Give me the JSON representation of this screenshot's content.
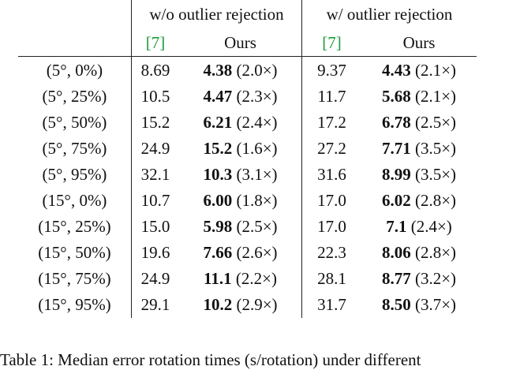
{
  "header": {
    "group1": "w/o outlier rejection",
    "group2": "w/ outlier rejection",
    "sub_ref1": "[7]",
    "sub_ours1": "Ours",
    "sub_ref2": "[7]",
    "sub_ours2": "Ours"
  },
  "rows": [
    {
      "cond": "(5°, 0%)",
      "a": "8.69",
      "b": "4.38",
      "br": "(2.0×)",
      "c": "9.37",
      "d": "4.43",
      "dr": "(2.1×)"
    },
    {
      "cond": "(5°, 25%)",
      "a": "10.5",
      "b": "4.47",
      "br": "(2.3×)",
      "c": "11.7",
      "d": "5.68",
      "dr": "(2.1×)"
    },
    {
      "cond": "(5°, 50%)",
      "a": "15.2",
      "b": "6.21",
      "br": "(2.4×)",
      "c": "17.2",
      "d": "6.78",
      "dr": "(2.5×)"
    },
    {
      "cond": "(5°, 75%)",
      "a": "24.9",
      "b": "15.2",
      "br": "(1.6×)",
      "c": "27.2",
      "d": "7.71",
      "dr": "(3.5×)"
    },
    {
      "cond": "(5°, 95%)",
      "a": "32.1",
      "b": "10.3",
      "br": "(3.1×)",
      "c": "31.6",
      "d": "8.99",
      "dr": "(3.5×)"
    },
    {
      "cond": "(15°, 0%)",
      "a": "10.7",
      "b": "6.00",
      "br": "(1.8×)",
      "c": "17.0",
      "d": "6.02",
      "dr": "(2.8×)"
    },
    {
      "cond": "(15°, 25%)",
      "a": "15.0",
      "b": "5.98",
      "br": "(2.5×)",
      "c": "17.0",
      "d": "7.1",
      "dr": "(2.4×)"
    },
    {
      "cond": "(15°, 50%)",
      "a": "19.6",
      "b": "7.66",
      "br": "(2.6×)",
      "c": "22.3",
      "d": "8.06",
      "dr": "(2.8×)"
    },
    {
      "cond": "(15°, 75%)",
      "a": "24.9",
      "b": "11.1",
      "br": "(2.2×)",
      "c": "28.1",
      "d": "8.77",
      "dr": "(3.2×)"
    },
    {
      "cond": "(15°, 95%)",
      "a": "29.1",
      "b": "10.2",
      "br": "(2.9×)",
      "c": "31.7",
      "d": "8.50",
      "dr": "(3.7×)"
    }
  ],
  "caption": "Table 1: Median error rotation times (s/rotation) under different"
}
